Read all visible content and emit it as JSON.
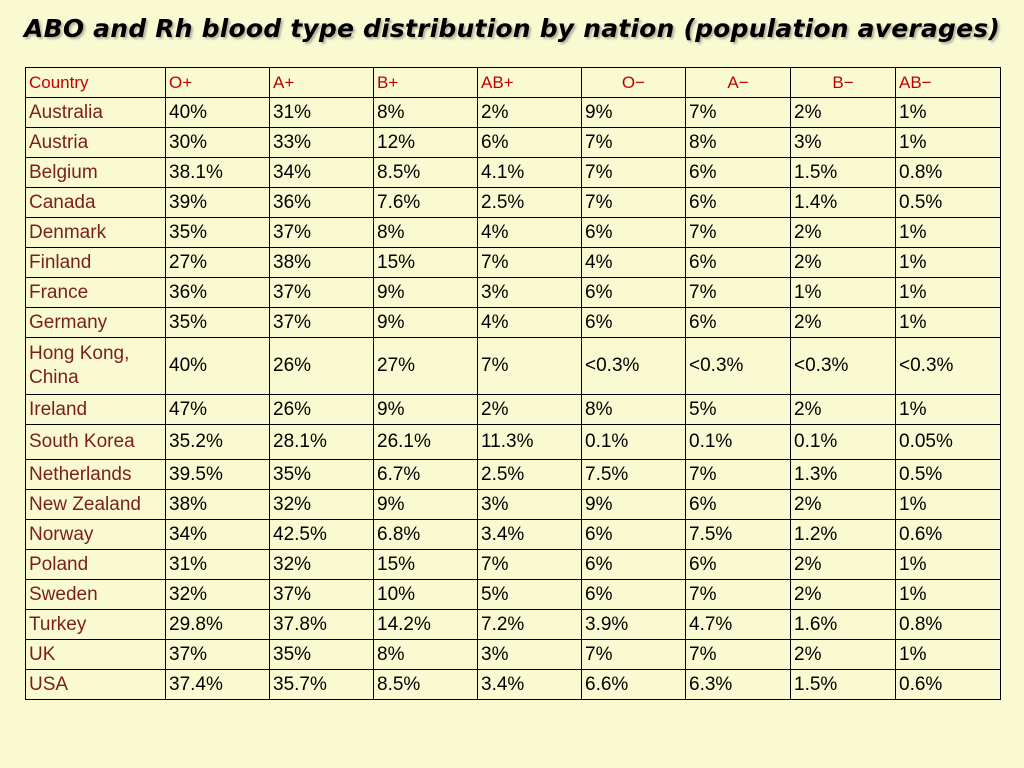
{
  "title": "ABO and Rh blood type distribution by nation (population averages)",
  "table": {
    "headers": [
      "Country",
      "O+",
      "A+",
      "B+",
      "AB+",
      "O−",
      "A−",
      "B−",
      "AB−"
    ],
    "rows": [
      [
        "Australia",
        "40%",
        "31%",
        "8%",
        "2%",
        "9%",
        "7%",
        "2%",
        "1%"
      ],
      [
        "Austria",
        "30%",
        "33%",
        "12%",
        "6%",
        "7%",
        "8%",
        "3%",
        "1%"
      ],
      [
        "Belgium",
        "38.1%",
        "34%",
        "8.5%",
        "4.1%",
        "7%",
        "6%",
        "1.5%",
        "0.8%"
      ],
      [
        "Canada",
        "39%",
        "36%",
        "7.6%",
        "2.5%",
        "7%",
        "6%",
        "1.4%",
        "0.5%"
      ],
      [
        "Denmark",
        "35%",
        "37%",
        "8%",
        "4%",
        "6%",
        "7%",
        "2%",
        "1%"
      ],
      [
        "Finland",
        "27%",
        "38%",
        "15%",
        "7%",
        "4%",
        "6%",
        "2%",
        "1%"
      ],
      [
        "France",
        "36%",
        "37%",
        "9%",
        "3%",
        "6%",
        "7%",
        "1%",
        "1%"
      ],
      [
        "Germany",
        "35%",
        "37%",
        "9%",
        "4%",
        "6%",
        "6%",
        "2%",
        "1%"
      ],
      [
        "Hong Kong, China",
        "40%",
        "26%",
        "27%",
        "7%",
        "<0.3%",
        "<0.3%",
        "<0.3%",
        "<0.3%"
      ],
      [
        "Ireland",
        "47%",
        "26%",
        "9%",
        "2%",
        "8%",
        "5%",
        "2%",
        "1%"
      ],
      [
        "South Korea",
        "35.2%",
        "28.1%",
        "26.1%",
        "11.3%",
        "0.1%",
        "0.1%",
        "0.1%",
        "0.05%"
      ],
      [
        "Netherlands",
        "39.5%",
        "35%",
        "6.7%",
        "2.5%",
        "7.5%",
        "7%",
        "1.3%",
        "0.5%"
      ],
      [
        "New Zealand",
        "38%",
        "32%",
        "9%",
        "3%",
        "9%",
        "6%",
        "2%",
        "1%"
      ],
      [
        "Norway",
        "34%",
        "42.5%",
        "6.8%",
        "3.4%",
        "6%",
        "7.5%",
        "1.2%",
        "0.6%"
      ],
      [
        "Poland",
        "31%",
        "32%",
        "15%",
        "7%",
        "6%",
        "6%",
        "2%",
        "1%"
      ],
      [
        "Sweden",
        "32%",
        "37%",
        "10%",
        "5%",
        "6%",
        "7%",
        "2%",
        "1%"
      ],
      [
        "Turkey",
        "29.8%",
        "37.8%",
        "14.2%",
        "7.2%",
        "3.9%",
        "4.7%",
        "1.6%",
        "0.8%"
      ],
      [
        "UK",
        "37%",
        "35%",
        "8%",
        "3%",
        "7%",
        "7%",
        "2%",
        "1%"
      ],
      [
        "USA",
        "37.4%",
        "35.7%",
        "8.5%",
        "3.4%",
        "6.6%",
        "6.3%",
        "1.5%",
        "0.6%"
      ]
    ]
  },
  "colors": {
    "background": "#fafad2",
    "header_text": "#c00000",
    "country_text": "#7a1e1e",
    "value_text": "#000000"
  }
}
